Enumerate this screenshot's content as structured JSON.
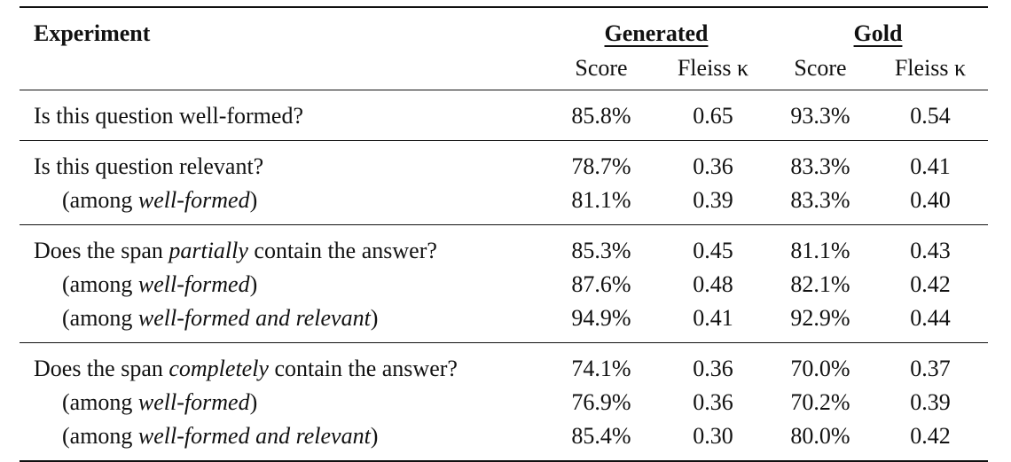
{
  "header": {
    "experiment": "Experiment",
    "generated": "Generated",
    "gold": "Gold",
    "score": "Score",
    "fleiss": "Fleiss κ"
  },
  "groups": [
    {
      "rows": [
        {
          "label": [
            {
              "t": "Is this question well-formed?",
              "i": false
            }
          ],
          "indent": false,
          "gen_score": "85.8%",
          "gen_kappa": "0.65",
          "gold_score": "93.3%",
          "gold_kappa": "0.54"
        }
      ]
    },
    {
      "rows": [
        {
          "label": [
            {
              "t": "Is this question relevant?",
              "i": false
            }
          ],
          "indent": false,
          "gen_score": "78.7%",
          "gen_kappa": "0.36",
          "gold_score": "83.3%",
          "gold_kappa": "0.41"
        },
        {
          "label": [
            {
              "t": "(among ",
              "i": false
            },
            {
              "t": "well-formed",
              "i": true
            },
            {
              "t": ")",
              "i": false
            }
          ],
          "indent": true,
          "gen_score": "81.1%",
          "gen_kappa": "0.39",
          "gold_score": "83.3%",
          "gold_kappa": "0.40"
        }
      ]
    },
    {
      "rows": [
        {
          "label": [
            {
              "t": "Does the span ",
              "i": false
            },
            {
              "t": "partially",
              "i": true
            },
            {
              "t": " contain the answer?",
              "i": false
            }
          ],
          "indent": false,
          "gen_score": "85.3%",
          "gen_kappa": "0.45",
          "gold_score": "81.1%",
          "gold_kappa": "0.43"
        },
        {
          "label": [
            {
              "t": "(among ",
              "i": false
            },
            {
              "t": "well-formed",
              "i": true
            },
            {
              "t": ")",
              "i": false
            }
          ],
          "indent": true,
          "gen_score": "87.6%",
          "gen_kappa": "0.48",
          "gold_score": "82.1%",
          "gold_kappa": "0.42"
        },
        {
          "label": [
            {
              "t": "(among ",
              "i": false
            },
            {
              "t": "well-formed and relevant",
              "i": true
            },
            {
              "t": ")",
              "i": false
            }
          ],
          "indent": true,
          "gen_score": "94.9%",
          "gen_kappa": "0.41",
          "gold_score": "92.9%",
          "gold_kappa": "0.44"
        }
      ]
    },
    {
      "rows": [
        {
          "label": [
            {
              "t": "Does the span ",
              "i": false
            },
            {
              "t": "completely",
              "i": true
            },
            {
              "t": " contain the answer?",
              "i": false
            }
          ],
          "indent": false,
          "gen_score": "74.1%",
          "gen_kappa": "0.36",
          "gold_score": "70.0%",
          "gold_kappa": "0.37"
        },
        {
          "label": [
            {
              "t": "(among ",
              "i": false
            },
            {
              "t": "well-formed",
              "i": true
            },
            {
              "t": ")",
              "i": false
            }
          ],
          "indent": true,
          "gen_score": "76.9%",
          "gen_kappa": "0.36",
          "gold_score": "70.2%",
          "gold_kappa": "0.39"
        },
        {
          "label": [
            {
              "t": "(among ",
              "i": false
            },
            {
              "t": "well-formed and relevant",
              "i": true
            },
            {
              "t": ")",
              "i": false
            }
          ],
          "indent": true,
          "gen_score": "85.4%",
          "gen_kappa": "0.30",
          "gold_score": "80.0%",
          "gold_kappa": "0.42"
        }
      ]
    }
  ]
}
